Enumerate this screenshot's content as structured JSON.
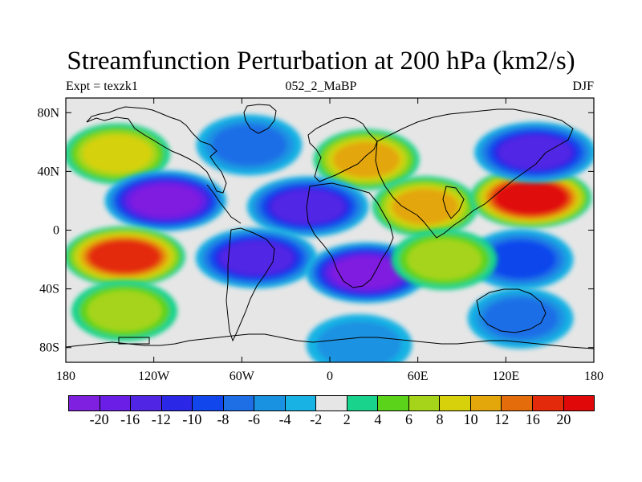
{
  "title": "Streamfunction Perturbation at 200 hPa (km2/s)",
  "subtitle_left": "Expt = texzk1",
  "subtitle_center": "052_2_MaBP",
  "subtitle_right": "DJF",
  "map": {
    "lon_range": [
      -180,
      180
    ],
    "lat_range": [
      -90,
      90
    ],
    "x_ticks": [
      {
        "value": -180,
        "label": "180"
      },
      {
        "value": -120,
        "label": "120W"
      },
      {
        "value": -60,
        "label": "60W"
      },
      {
        "value": 0,
        "label": "0"
      },
      {
        "value": 60,
        "label": "60E"
      },
      {
        "value": 120,
        "label": "120E"
      },
      {
        "value": 180,
        "label": "180"
      }
    ],
    "y_ticks": [
      {
        "value": 80,
        "label": "80N"
      },
      {
        "value": 40,
        "label": "40N"
      },
      {
        "value": 0,
        "label": "0"
      },
      {
        "value": -40,
        "label": "40S"
      },
      {
        "value": -80,
        "label": "80S"
      }
    ],
    "background_color": "#e6e6e6",
    "features": [
      {
        "id": "npac-west-pos",
        "lon": -145,
        "lat": 52,
        "level": 8
      },
      {
        "id": "npac-neg",
        "lon": -112,
        "lat": 20,
        "level": -20
      },
      {
        "id": "natl-neg",
        "lon": -55,
        "lat": 58,
        "level": -6
      },
      {
        "id": "natl-pos",
        "lon": 25,
        "lat": 48,
        "level": 10
      },
      {
        "id": "eur-neg",
        "lon": -15,
        "lat": 16,
        "level": -12
      },
      {
        "id": "afr-pos",
        "lon": 65,
        "lat": 16,
        "level": 10
      },
      {
        "id": "asia-pos",
        "lon": 137,
        "lat": 22,
        "level": 20
      },
      {
        "id": "npw-neg",
        "lon": 140,
        "lat": 53,
        "level": -12
      },
      {
        "id": "spac-pos",
        "lon": -140,
        "lat": -18,
        "level": 16
      },
      {
        "id": "sam-neg",
        "lon": -50,
        "lat": -19,
        "level": -12
      },
      {
        "id": "satl-neg",
        "lon": 25,
        "lat": -29,
        "level": -20
      },
      {
        "id": "io-neg",
        "lon": 130,
        "lat": -20,
        "level": -8
      },
      {
        "id": "sio-pos",
        "lon": 78,
        "lat": -20,
        "level": 6
      },
      {
        "id": "so-neg",
        "lon": 130,
        "lat": -60,
        "level": -6
      },
      {
        "id": "spac-south-pos",
        "lon": -140,
        "lat": -55,
        "level": 6
      },
      {
        "id": "ant-neg",
        "lon": 20,
        "lat": -78,
        "level": -4
      }
    ]
  },
  "colorbar": {
    "levels": [
      "-20",
      "-16",
      "-12",
      "-10",
      "-8",
      "-6",
      "-4",
      "-2",
      "2",
      "4",
      "6",
      "8",
      "10",
      "12",
      "16",
      "20"
    ],
    "colors": [
      "#7f1fe0",
      "#6a1ee6",
      "#5125e4",
      "#2a28e6",
      "#1046ec",
      "#1e6ee6",
      "#1a92e2",
      "#18b2e4",
      "#e6e6e6",
      "#19d38c",
      "#5bd31a",
      "#a6d41a",
      "#d6d10b",
      "#e3a60b",
      "#e56c0b",
      "#e32a0a",
      "#e00808"
    ]
  }
}
